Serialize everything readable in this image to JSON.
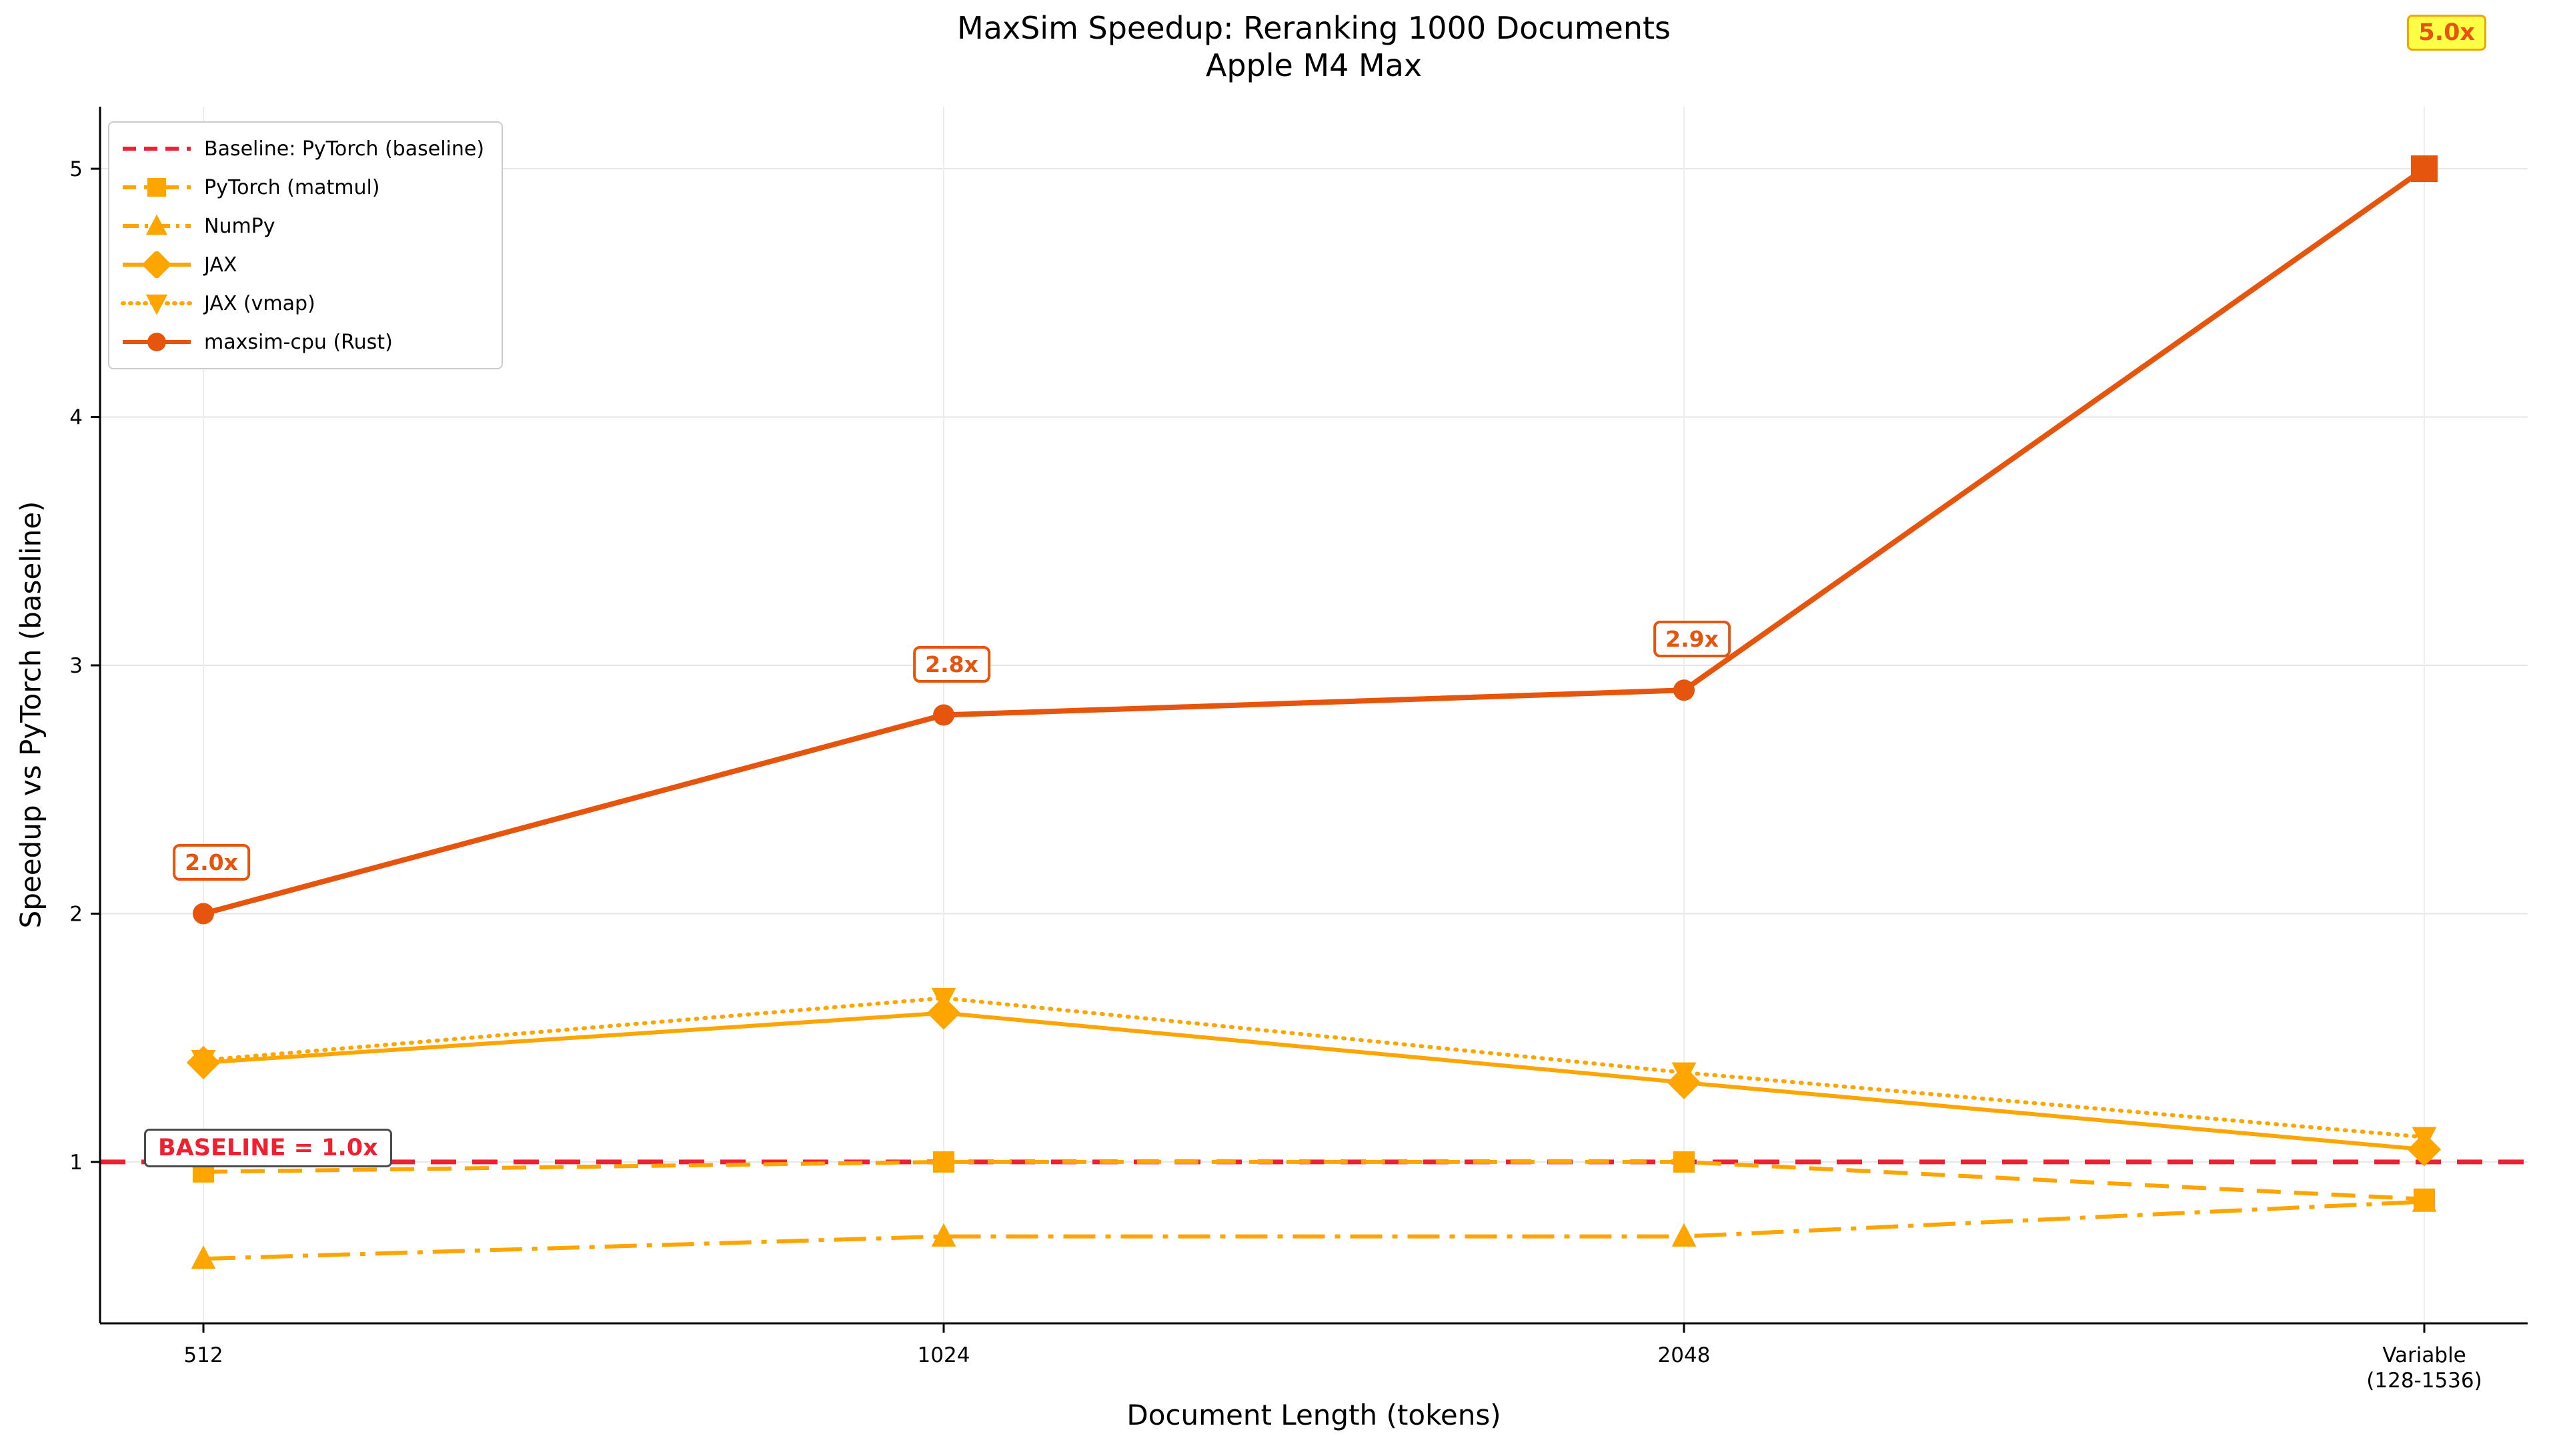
{
  "chart_data": {
    "type": "line",
    "title": "MaxSim Speedup: Reranking 1000 Documents",
    "subtitle": "Apple M4 Max",
    "xlabel": "Document Length (tokens)",
    "ylabel": "Speedup vs PyTorch (baseline)",
    "categories": [
      "512",
      "1024",
      "2048",
      "Variable\n(128-1536)"
    ],
    "yticks": [
      1,
      2,
      3,
      4,
      5
    ],
    "ylim": [
      0.35,
      5.25
    ],
    "grid": true,
    "legend_position": "upper-left",
    "baseline": {
      "label": "Baseline: PyTorch (baseline)",
      "value": 1.0,
      "color": "#ef2130",
      "style": "dashed",
      "chart_label": "BASELINE = 1.0x"
    },
    "series": [
      {
        "name": "PyTorch (matmul)",
        "values": [
          0.96,
          1.0,
          1.0,
          0.85
        ],
        "color": "#ffa500",
        "style": "dashed",
        "marker": "square"
      },
      {
        "name": "NumPy",
        "values": [
          0.61,
          0.7,
          0.7,
          0.84
        ],
        "color": "#ffa500",
        "style": "dashdot",
        "marker": "triangle-up"
      },
      {
        "name": "JAX",
        "values": [
          1.4,
          1.6,
          1.32,
          1.05
        ],
        "color": "#ffa500",
        "style": "solid",
        "marker": "diamond"
      },
      {
        "name": "JAX (vmap)",
        "values": [
          1.41,
          1.66,
          1.36,
          1.1
        ],
        "color": "#ffa500",
        "style": "dotted",
        "marker": "triangle-down"
      },
      {
        "name": "maxsim-cpu (Rust)",
        "values": [
          2.0,
          2.8,
          2.9,
          5.0
        ],
        "color": "#e6550d",
        "style": "solid",
        "marker": "circle",
        "last_marker": "square"
      }
    ],
    "annotations": [
      {
        "text": "2.0x",
        "x_index": 0,
        "y": 2.0
      },
      {
        "text": "2.8x",
        "x_index": 1,
        "y": 2.8
      },
      {
        "text": "2.9x",
        "x_index": 2,
        "y": 2.9
      }
    ],
    "badge": {
      "text": "5.0x"
    }
  }
}
